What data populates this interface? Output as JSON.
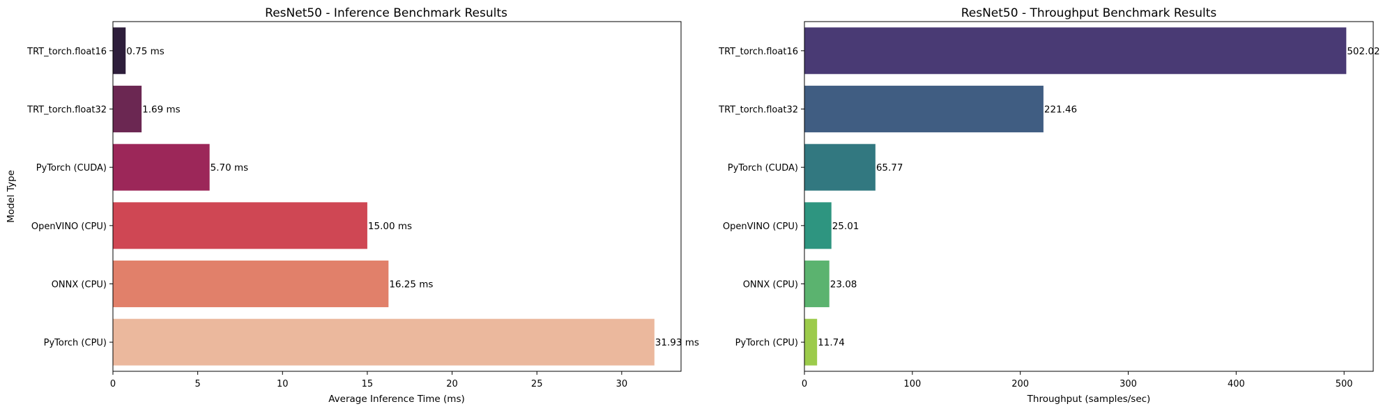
{
  "chart_data": [
    {
      "type": "bar",
      "orientation": "horizontal",
      "title": "ResNet50 - Inference Benchmark Results",
      "xlabel": "Average Inference Time (ms)",
      "ylabel": "Model Type",
      "xlim": [
        0,
        33.5
      ],
      "xticks": [
        0,
        5,
        10,
        15,
        20,
        25,
        30
      ],
      "categories": [
        "TRT_torch.float16",
        "TRT_torch.float32",
        "PyTorch (CUDA)",
        "OpenVINO (CPU)",
        "ONNX (CPU)",
        "PyTorch (CPU)"
      ],
      "values": [
        0.75,
        1.69,
        5.7,
        15.0,
        16.25,
        31.93
      ],
      "data_labels": [
        "0.75 ms",
        "1.69 ms",
        "5.70 ms",
        "15.00 ms",
        "16.25 ms",
        "31.93 ms"
      ],
      "colors": [
        "#2e1e3b",
        "#6b2752",
        "#9c2759",
        "#cf4754",
        "#e1806a",
        "#ebb89d"
      ],
      "grid": false
    },
    {
      "type": "bar",
      "orientation": "horizontal",
      "title": "ResNet50 - Throughput Benchmark Results",
      "xlabel": "Throughput (samples/sec)",
      "ylabel": "",
      "xlim": [
        0,
        527
      ],
      "xticks": [
        0,
        100,
        200,
        300,
        400,
        500
      ],
      "categories": [
        "TRT_torch.float16",
        "TRT_torch.float32",
        "PyTorch (CUDA)",
        "OpenVINO (CPU)",
        "ONNX (CPU)",
        "PyTorch (CPU)"
      ],
      "values": [
        502.02,
        221.46,
        65.77,
        25.01,
        23.08,
        11.74
      ],
      "data_labels": [
        "502.02",
        "221.46",
        "65.77",
        "25.01",
        "23.08",
        "11.74"
      ],
      "colors": [
        "#493a74",
        "#405d82",
        "#327880",
        "#2e9580",
        "#5bb36f",
        "#9ccb4b"
      ],
      "grid": false
    }
  ]
}
